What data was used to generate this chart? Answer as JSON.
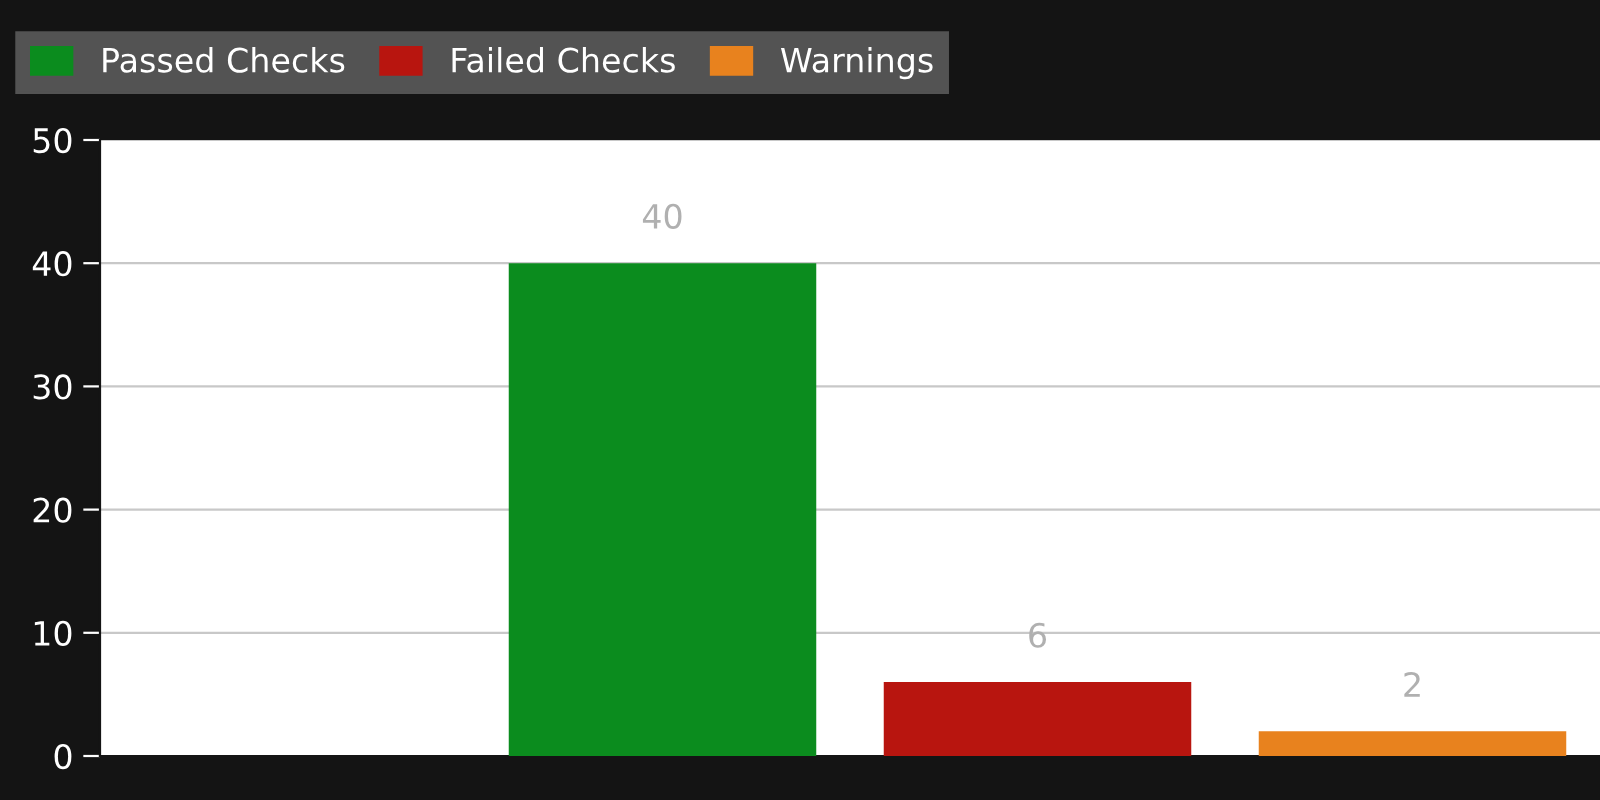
{
  "chart_data": {
    "type": "bar",
    "categories": [
      null,
      null,
      null,
      null
    ],
    "series": [
      {
        "name": "Passed Checks",
        "color": "#0b8c1e",
        "values": [
          null,
          40,
          null,
          null
        ]
      },
      {
        "name": "Failed Checks",
        "color": "#b8150f",
        "values": [
          null,
          null,
          6,
          null
        ]
      },
      {
        "name": "Warnings",
        "color": "#e8821e",
        "values": [
          null,
          null,
          null,
          2
        ]
      }
    ],
    "ylim": [
      0,
      50
    ],
    "yticks": [
      0,
      10,
      20,
      30,
      40,
      50
    ],
    "grid": "y",
    "legend": "top left",
    "data_labels": true
  }
}
